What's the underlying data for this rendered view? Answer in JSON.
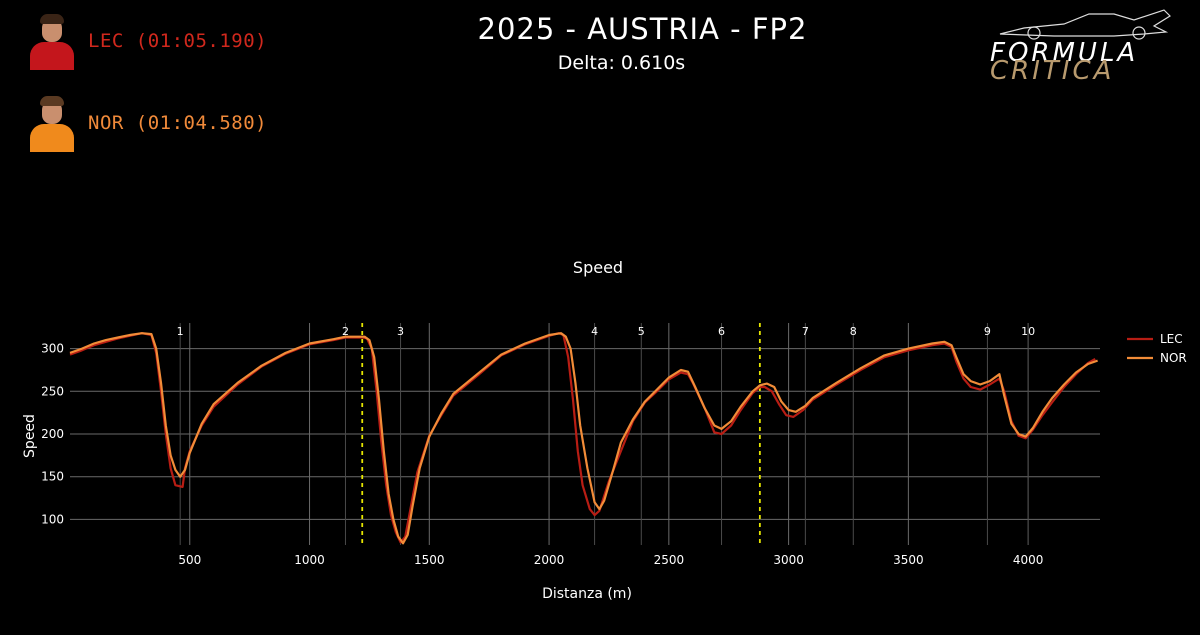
{
  "header": {
    "title": "2025 - AUSTRIA - FP2",
    "delta": "Delta: 0.610s"
  },
  "drivers": [
    {
      "label": "LEC (01:05.190)",
      "color": "#d0281d"
    },
    {
      "label": "NOR (01:04.580)",
      "color": "#f08a3a"
    }
  ],
  "logo": {
    "line1": "FORMULA",
    "line2": "CRITICA"
  },
  "chart_data": {
    "type": "line",
    "title": "Speed",
    "xlabel": "Distanza (m)",
    "ylabel": "Speed",
    "xlim": [
      0,
      4300
    ],
    "ylim": [
      70,
      330
    ],
    "x_ticks": [
      500,
      1000,
      1500,
      2000,
      2500,
      3000,
      3500,
      4000
    ],
    "y_ticks": [
      100,
      150,
      200,
      250,
      300
    ],
    "grid": true,
    "legend_placement": "right",
    "corners": [
      {
        "label": "1",
        "x": 460
      },
      {
        "label": "2",
        "x": 1150
      },
      {
        "label": "3",
        "x": 1380
      },
      {
        "label": "4",
        "x": 2190
      },
      {
        "label": "5",
        "x": 2385
      },
      {
        "label": "6",
        "x": 2720
      },
      {
        "label": "7",
        "x": 3070
      },
      {
        "label": "8",
        "x": 3270
      },
      {
        "label": "9",
        "x": 3830
      },
      {
        "label": "10",
        "x": 4000
      }
    ],
    "sector_lines": [
      1220,
      2880
    ],
    "series": [
      {
        "name": "LEC",
        "color": "#b81d14",
        "points": [
          [
            0,
            293
          ],
          [
            50,
            298
          ],
          [
            100,
            304
          ],
          [
            150,
            308
          ],
          [
            200,
            312
          ],
          [
            250,
            315
          ],
          [
            300,
            318
          ],
          [
            340,
            316
          ],
          [
            360,
            295
          ],
          [
            380,
            250
          ],
          [
            400,
            200
          ],
          [
            420,
            160
          ],
          [
            440,
            140
          ],
          [
            470,
            138
          ],
          [
            480,
            160
          ],
          [
            500,
            180
          ],
          [
            550,
            210
          ],
          [
            600,
            232
          ],
          [
            700,
            258
          ],
          [
            800,
            279
          ],
          [
            900,
            294
          ],
          [
            1000,
            305
          ],
          [
            1100,
            310
          ],
          [
            1150,
            313
          ],
          [
            1200,
            313
          ],
          [
            1220,
            313
          ],
          [
            1240,
            312
          ],
          [
            1260,
            300
          ],
          [
            1280,
            250
          ],
          [
            1300,
            190
          ],
          [
            1320,
            140
          ],
          [
            1340,
            105
          ],
          [
            1360,
            85
          ],
          [
            1380,
            73
          ],
          [
            1400,
            80
          ],
          [
            1420,
            110
          ],
          [
            1450,
            155
          ],
          [
            1500,
            198
          ],
          [
            1550,
            222
          ],
          [
            1600,
            245
          ],
          [
            1700,
            268
          ],
          [
            1800,
            292
          ],
          [
            1900,
            305
          ],
          [
            2000,
            315
          ],
          [
            2040,
            318
          ],
          [
            2060,
            316
          ],
          [
            2080,
            290
          ],
          [
            2100,
            240
          ],
          [
            2120,
            180
          ],
          [
            2140,
            140
          ],
          [
            2170,
            112
          ],
          [
            2190,
            105
          ],
          [
            2210,
            110
          ],
          [
            2250,
            145
          ],
          [
            2300,
            180
          ],
          [
            2350,
            215
          ],
          [
            2400,
            237
          ],
          [
            2450,
            250
          ],
          [
            2500,
            264
          ],
          [
            2550,
            272
          ],
          [
            2580,
            270
          ],
          [
            2600,
            260
          ],
          [
            2650,
            230
          ],
          [
            2690,
            202
          ],
          [
            2720,
            200
          ],
          [
            2760,
            210
          ],
          [
            2800,
            228
          ],
          [
            2850,
            248
          ],
          [
            2880,
            255
          ],
          [
            2900,
            255
          ],
          [
            2930,
            250
          ],
          [
            2960,
            235
          ],
          [
            2990,
            222
          ],
          [
            3020,
            220
          ],
          [
            3060,
            228
          ],
          [
            3100,
            240
          ],
          [
            3200,
            258
          ],
          [
            3300,
            275
          ],
          [
            3400,
            290
          ],
          [
            3500,
            298
          ],
          [
            3600,
            304
          ],
          [
            3650,
            306
          ],
          [
            3680,
            302
          ],
          [
            3700,
            285
          ],
          [
            3730,
            265
          ],
          [
            3760,
            255
          ],
          [
            3800,
            252
          ],
          [
            3840,
            258
          ],
          [
            3880,
            265
          ],
          [
            3900,
            250
          ],
          [
            3930,
            215
          ],
          [
            3960,
            198
          ],
          [
            3990,
            195
          ],
          [
            4020,
            205
          ],
          [
            4060,
            222
          ],
          [
            4100,
            237
          ],
          [
            4150,
            255
          ],
          [
            4200,
            270
          ],
          [
            4250,
            283
          ],
          [
            4280,
            288
          ]
        ]
      },
      {
        "name": "NOR",
        "color": "#f28c38",
        "points": [
          [
            0,
            295
          ],
          [
            50,
            300
          ],
          [
            100,
            306
          ],
          [
            150,
            310
          ],
          [
            200,
            313
          ],
          [
            250,
            316
          ],
          [
            300,
            318
          ],
          [
            340,
            317
          ],
          [
            360,
            300
          ],
          [
            380,
            260
          ],
          [
            400,
            210
          ],
          [
            420,
            175
          ],
          [
            440,
            158
          ],
          [
            460,
            150
          ],
          [
            480,
            158
          ],
          [
            500,
            178
          ],
          [
            550,
            212
          ],
          [
            600,
            235
          ],
          [
            700,
            260
          ],
          [
            800,
            280
          ],
          [
            900,
            295
          ],
          [
            1000,
            306
          ],
          [
            1100,
            311
          ],
          [
            1150,
            314
          ],
          [
            1200,
            314
          ],
          [
            1230,
            314
          ],
          [
            1250,
            310
          ],
          [
            1270,
            290
          ],
          [
            1290,
            240
          ],
          [
            1310,
            180
          ],
          [
            1330,
            130
          ],
          [
            1350,
            100
          ],
          [
            1370,
            80
          ],
          [
            1390,
            72
          ],
          [
            1410,
            82
          ],
          [
            1430,
            115
          ],
          [
            1460,
            160
          ],
          [
            1500,
            197
          ],
          [
            1550,
            224
          ],
          [
            1600,
            247
          ],
          [
            1700,
            270
          ],
          [
            1800,
            293
          ],
          [
            1900,
            306
          ],
          [
            2000,
            316
          ],
          [
            2050,
            318
          ],
          [
            2070,
            314
          ],
          [
            2090,
            300
          ],
          [
            2110,
            260
          ],
          [
            2130,
            210
          ],
          [
            2160,
            160
          ],
          [
            2190,
            120
          ],
          [
            2210,
            112
          ],
          [
            2230,
            122
          ],
          [
            2270,
            160
          ],
          [
            2300,
            190
          ],
          [
            2350,
            217
          ],
          [
            2400,
            238
          ],
          [
            2450,
            252
          ],
          [
            2500,
            266
          ],
          [
            2550,
            275
          ],
          [
            2580,
            273
          ],
          [
            2610,
            255
          ],
          [
            2650,
            230
          ],
          [
            2690,
            210
          ],
          [
            2720,
            206
          ],
          [
            2760,
            215
          ],
          [
            2800,
            232
          ],
          [
            2850,
            250
          ],
          [
            2880,
            257
          ],
          [
            2910,
            259
          ],
          [
            2940,
            255
          ],
          [
            2970,
            238
          ],
          [
            3000,
            228
          ],
          [
            3030,
            226
          ],
          [
            3070,
            233
          ],
          [
            3100,
            242
          ],
          [
            3200,
            260
          ],
          [
            3300,
            277
          ],
          [
            3400,
            292
          ],
          [
            3500,
            300
          ],
          [
            3600,
            306
          ],
          [
            3650,
            308
          ],
          [
            3680,
            304
          ],
          [
            3700,
            290
          ],
          [
            3730,
            270
          ],
          [
            3760,
            262
          ],
          [
            3800,
            258
          ],
          [
            3840,
            262
          ],
          [
            3880,
            270
          ],
          [
            3900,
            245
          ],
          [
            3930,
            212
          ],
          [
            3960,
            200
          ],
          [
            3990,
            197
          ],
          [
            4020,
            207
          ],
          [
            4060,
            226
          ],
          [
            4100,
            242
          ],
          [
            4150,
            258
          ],
          [
            4200,
            272
          ],
          [
            4250,
            282
          ],
          [
            4290,
            286
          ]
        ]
      }
    ]
  }
}
